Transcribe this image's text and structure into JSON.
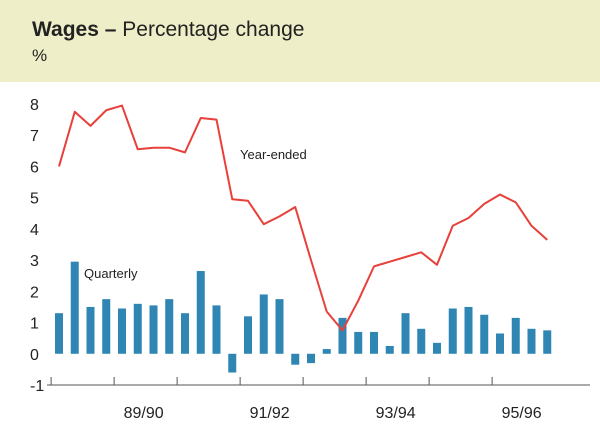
{
  "title": {
    "bold": "Wages",
    "separator": "–",
    "rest": "Percentage change"
  },
  "unit": "%",
  "colors": {
    "header_bg": "#eeeec8",
    "bar": "#2f86b3",
    "line": "#e8403a"
  },
  "chart_data": {
    "type": "bar",
    "ylim": [
      -1,
      8
    ],
    "yticks": [
      -1,
      0,
      1,
      2,
      3,
      4,
      5,
      6,
      7,
      8
    ],
    "x_tick_labels": [
      "89/90",
      "91/92",
      "93/94",
      "95/96"
    ],
    "grid": false,
    "series": [
      {
        "name": "Quarterly",
        "kind": "bar",
        "values": [
          1.3,
          2.95,
          1.5,
          1.75,
          1.45,
          1.6,
          1.55,
          1.75,
          1.3,
          2.65,
          1.55,
          -0.6,
          1.2,
          1.9,
          1.75,
          -0.35,
          -0.3,
          0.15,
          1.15,
          0.7,
          0.7,
          0.25,
          1.3,
          0.8,
          0.35,
          1.45,
          1.5,
          1.25,
          0.65,
          1.15,
          0.8,
          0.75
        ]
      },
      {
        "name": "Year-ended",
        "kind": "line",
        "values": [
          6.0,
          7.75,
          7.3,
          7.8,
          7.95,
          6.55,
          6.6,
          6.6,
          6.45,
          7.55,
          7.5,
          4.95,
          4.9,
          4.15,
          4.4,
          4.7,
          3.0,
          1.35,
          0.75,
          1.7,
          2.8,
          2.95,
          3.1,
          3.25,
          2.85,
          4.1,
          4.35,
          4.8,
          5.1,
          4.85,
          4.1,
          3.65
        ]
      }
    ]
  }
}
